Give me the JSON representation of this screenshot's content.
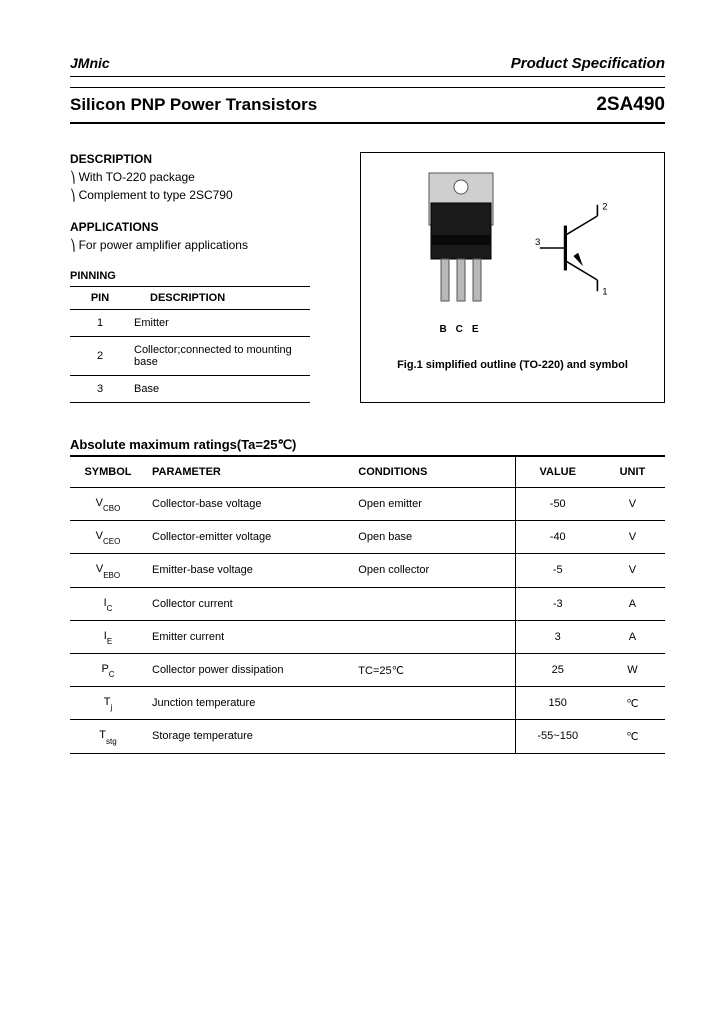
{
  "header": {
    "brand": "JMnic",
    "spec": "Product Specification"
  },
  "title": {
    "left": "Silicon PNP Power Transistors",
    "right": "2SA490"
  },
  "description": {
    "heading": "DESCRIPTION",
    "items": [
      "With TO-220 package",
      "Complement to type 2SC790"
    ]
  },
  "applications": {
    "heading": "APPLICATIONS",
    "items": [
      "For power amplifier applications"
    ]
  },
  "pinning": {
    "heading": "PINNING",
    "columns": [
      "PIN",
      "DESCRIPTION"
    ],
    "rows": [
      {
        "pin": "1",
        "desc": "Emitter"
      },
      {
        "pin": "2",
        "desc": "Collector;connected to mounting base"
      },
      {
        "pin": "3",
        "desc": "Base"
      }
    ]
  },
  "figure": {
    "pin_labels": "BCE",
    "symbol_pins": {
      "b": "3",
      "c": "2",
      "e": "1"
    },
    "caption": "Fig.1 simplified outline (TO-220) and symbol"
  },
  "ratings": {
    "heading": "Absolute maximum ratings(Ta=25℃)",
    "columns": [
      "SYMBOL",
      "PARAMETER",
      "CONDITIONS",
      "VALUE",
      "UNIT"
    ],
    "rows": [
      {
        "sym": "V",
        "sub": "CBO",
        "param": "Collector-base voltage",
        "cond": "Open emitter",
        "val": "-50",
        "unit": "V"
      },
      {
        "sym": "V",
        "sub": "CEO",
        "param": "Collector-emitter voltage",
        "cond": "Open base",
        "val": "-40",
        "unit": "V"
      },
      {
        "sym": "V",
        "sub": "EBO",
        "param": "Emitter-base voltage",
        "cond": "Open collector",
        "val": "-5",
        "unit": "V"
      },
      {
        "sym": "I",
        "sub": "C",
        "param": "Collector current",
        "cond": "",
        "val": "-3",
        "unit": "A"
      },
      {
        "sym": "I",
        "sub": "E",
        "param": "Emitter current",
        "cond": "",
        "val": "3",
        "unit": "A"
      },
      {
        "sym": "P",
        "sub": "C",
        "param": "Collector power dissipation",
        "cond": "TC=25℃",
        "val": "25",
        "unit": "W"
      },
      {
        "sym": "T",
        "sub": "j",
        "param": "Junction temperature",
        "cond": "",
        "val": "150",
        "unit": "℃"
      },
      {
        "sym": "T",
        "sub": "stg",
        "param": "Storage temperature",
        "cond": "",
        "val": "-55~150",
        "unit": "℃"
      }
    ]
  },
  "colors": {
    "text": "#000000",
    "page_bg": "#ffffff",
    "outer_bg": "#444444"
  }
}
